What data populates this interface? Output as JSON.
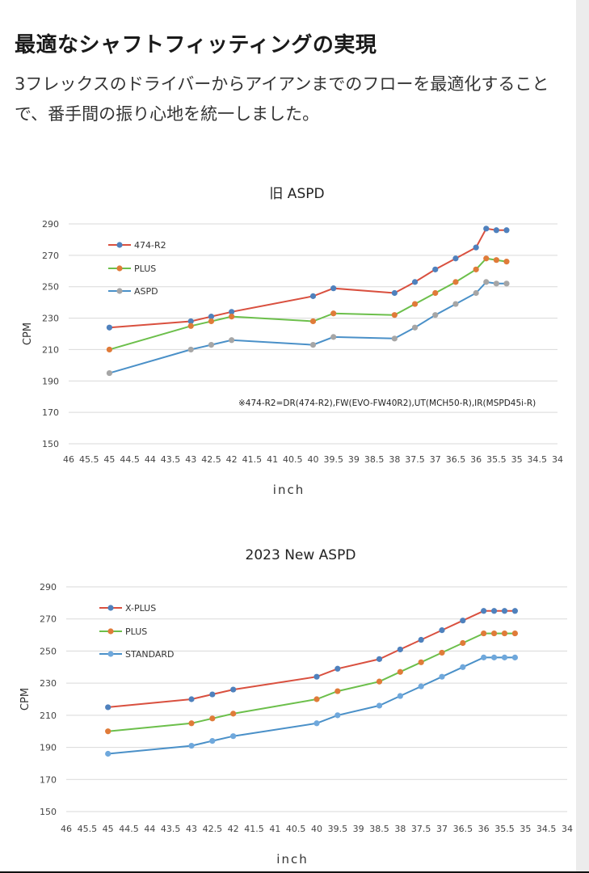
{
  "article": {
    "heading": "最適なシャフトフィッティングの実現",
    "description": "3フレックスのドライバーからアイアンまでのフローを最適化することで、番手間の振り心地を統一しました。"
  },
  "chart_data": [
    {
      "type": "line",
      "title": "旧 ASPD",
      "xlabel": "inch",
      "ylabel": "CPM",
      "x_reversed": true,
      "xlim": [
        46,
        34
      ],
      "ylim": [
        150,
        290
      ],
      "x_ticks": [
        "46",
        "45.5",
        "45",
        "44.5",
        "44",
        "43.5",
        "43",
        "42.5",
        "42",
        "41.5",
        "41",
        "40.5",
        "40",
        "39.5",
        "39",
        "38.5",
        "38",
        "37.5",
        "37",
        "36.5",
        "36",
        "35.5",
        "35",
        "34.5",
        "34"
      ],
      "y_ticks": [
        "150",
        "170",
        "190",
        "210",
        "230",
        "250",
        "270",
        "290"
      ],
      "grid": true,
      "legend_position": "top-left",
      "annotation": "※474-R2=DR(474-R2),FW(EVO-FW40R2),UT(MCH50-R),IR(MSPD45i-R)",
      "x": [
        45,
        43,
        42.5,
        42,
        40,
        39.5,
        38,
        37.5,
        37,
        36.5,
        36,
        35.75,
        35.5,
        35.25
      ],
      "series": [
        {
          "name": "474-R2",
          "line_color": "#d9503f",
          "marker_color": "#4f81bd",
          "values": [
            224,
            228,
            231,
            234,
            244,
            249,
            246,
            253,
            261,
            268,
            275,
            287,
            286,
            286
          ]
        },
        {
          "name": "PLUS",
          "line_color": "#6cbf4b",
          "marker_color": "#e07b39",
          "values": [
            210,
            225,
            228,
            231,
            228,
            233,
            232,
            239,
            246,
            253,
            261,
            268,
            267,
            266
          ]
        },
        {
          "name": "ASPD",
          "line_color": "#4a90c8",
          "marker_color": "#a6a6a6",
          "values": [
            195,
            210,
            213,
            216,
            213,
            218,
            217,
            224,
            232,
            239,
            246,
            253,
            252,
            252
          ]
        }
      ]
    },
    {
      "type": "line",
      "title": "2023 New ASPD",
      "xlabel": "inch",
      "ylabel": "CPM",
      "x_reversed": true,
      "xlim": [
        46,
        34
      ],
      "ylim": [
        150,
        290
      ],
      "x_ticks": [
        "46",
        "45.5",
        "45",
        "44.5",
        "44",
        "43.5",
        "43",
        "42.5",
        "42",
        "41.5",
        "41",
        "40.5",
        "40",
        "39.5",
        "39",
        "38.5",
        "38",
        "37.5",
        "37",
        "36.5",
        "36",
        "35.5",
        "35",
        "34.5",
        "34"
      ],
      "y_ticks": [
        "150",
        "170",
        "190",
        "210",
        "230",
        "250",
        "270",
        "290"
      ],
      "grid": true,
      "legend_position": "top-left",
      "x": [
        45,
        43,
        42.5,
        42,
        40,
        39.5,
        38.5,
        38,
        37.5,
        37,
        36.5,
        36,
        35.75,
        35.5,
        35.25
      ],
      "series": [
        {
          "name": "X-PLUS",
          "line_color": "#d9503f",
          "marker_color": "#4f81bd",
          "values": [
            215,
            220,
            223,
            226,
            234,
            239,
            245,
            251,
            257,
            263,
            269,
            275,
            275,
            275,
            275
          ]
        },
        {
          "name": "PLUS",
          "line_color": "#6cbf4b",
          "marker_color": "#e07b39",
          "values": [
            200,
            205,
            208,
            211,
            220,
            225,
            231,
            237,
            243,
            249,
            255,
            261,
            261,
            261,
            261
          ]
        },
        {
          "name": "STANDARD",
          "line_color": "#4a90c8",
          "marker_color": "#6fa8dc",
          "values": [
            186,
            191,
            194,
            197,
            205,
            210,
            216,
            222,
            228,
            234,
            240,
            246,
            246,
            246,
            246
          ]
        }
      ]
    }
  ]
}
